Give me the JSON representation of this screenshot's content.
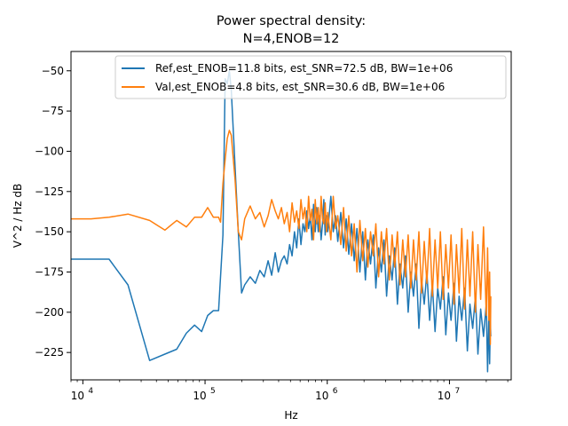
{
  "chart_data": {
    "type": "line",
    "title_line1": "Power spectral density:",
    "title_line2": "N=4,ENOB=12",
    "xlabel": "Hz",
    "ylabel": "V^2 / Hz dB",
    "xscale": "log",
    "xlim": [
      8000,
      32000000
    ],
    "ylim": [
      -242,
      -38
    ],
    "x_ticks": [
      {
        "value": 10000,
        "base": "10",
        "exp": "4"
      },
      {
        "value": 100000,
        "base": "10",
        "exp": "5"
      },
      {
        "value": 1000000,
        "base": "10",
        "exp": "6"
      },
      {
        "value": 10000000,
        "base": "10",
        "exp": "7"
      }
    ],
    "y_ticks": [
      {
        "value": -50,
        "label": "−50"
      },
      {
        "value": -75,
        "label": "−75"
      },
      {
        "value": -100,
        "label": "−100"
      },
      {
        "value": -125,
        "label": "−125"
      },
      {
        "value": -150,
        "label": "−150"
      },
      {
        "value": -175,
        "label": "−175"
      },
      {
        "value": -200,
        "label": "−200"
      },
      {
        "value": -225,
        "label": "−225"
      }
    ],
    "legend_position": "top-right",
    "series": [
      {
        "name": "Ref,est_ENOB=11.8 bits, est_SNR=72.5 dB, BW=1e+06",
        "color": "#1f77b4",
        "points": [
          [
            8000,
            -167
          ],
          [
            11700,
            -167
          ],
          [
            16400,
            -167
          ],
          [
            23400,
            -183
          ],
          [
            35200,
            -230
          ],
          [
            46900,
            -226
          ],
          [
            58600,
            -223
          ],
          [
            70300,
            -213
          ],
          [
            82000,
            -208
          ],
          [
            93700,
            -212
          ],
          [
            105000,
            -202
          ],
          [
            117000,
            -199
          ],
          [
            129000,
            -199
          ],
          [
            140000,
            -152
          ],
          [
            146000,
            -55
          ],
          [
            152000,
            -58
          ],
          [
            158000,
            -50
          ],
          [
            164000,
            -62
          ],
          [
            176000,
            -110
          ],
          [
            187000,
            -150
          ],
          [
            199000,
            -188
          ],
          [
            211000,
            -183
          ],
          [
            234000,
            -178
          ],
          [
            258000,
            -182
          ],
          [
            281000,
            -174
          ],
          [
            305000,
            -178
          ],
          [
            328000,
            -168
          ],
          [
            351000,
            -177
          ],
          [
            375000,
            -163
          ],
          [
            398000,
            -175
          ],
          [
            422000,
            -168
          ],
          [
            445000,
            -165
          ],
          [
            469000,
            -170
          ],
          [
            492000,
            -158
          ],
          [
            515000,
            -165
          ],
          [
            539000,
            -150
          ],
          [
            562000,
            -160
          ],
          [
            586000,
            -142
          ],
          [
            609000,
            -158
          ],
          [
            633000,
            -145
          ],
          [
            656000,
            -150
          ],
          [
            680000,
            -137
          ],
          [
            703000,
            -148
          ],
          [
            726000,
            -140
          ],
          [
            750000,
            -155
          ],
          [
            773000,
            -133
          ],
          [
            797000,
            -150
          ],
          [
            820000,
            -135
          ],
          [
            844000,
            -150
          ],
          [
            867000,
            -140
          ],
          [
            891000,
            -155
          ],
          [
            914000,
            -145
          ],
          [
            938000,
            -130
          ],
          [
            961000,
            -152
          ],
          [
            985000,
            -140
          ],
          [
            1010000,
            -150
          ],
          [
            1070000,
            -128
          ],
          [
            1120000,
            -150
          ],
          [
            1170000,
            -140
          ],
          [
            1220000,
            -156
          ],
          [
            1290000,
            -138
          ],
          [
            1360000,
            -160
          ],
          [
            1430000,
            -142
          ],
          [
            1500000,
            -164
          ],
          [
            1580000,
            -145
          ],
          [
            1660000,
            -168
          ],
          [
            1750000,
            -148
          ],
          [
            1850000,
            -175
          ],
          [
            1950000,
            -150
          ],
          [
            2050000,
            -180
          ],
          [
            2150000,
            -155
          ],
          [
            2260000,
            -170
          ],
          [
            2380000,
            -152
          ],
          [
            2500000,
            -185
          ],
          [
            2630000,
            -160
          ],
          [
            2770000,
            -175
          ],
          [
            2910000,
            -155
          ],
          [
            3060000,
            -190
          ],
          [
            3220000,
            -165
          ],
          [
            3390000,
            -180
          ],
          [
            3560000,
            -160
          ],
          [
            3750000,
            -195
          ],
          [
            3940000,
            -170
          ],
          [
            4150000,
            -185
          ],
          [
            4360000,
            -165
          ],
          [
            4590000,
            -200
          ],
          [
            4830000,
            -175
          ],
          [
            5080000,
            -190
          ],
          [
            5340000,
            -170
          ],
          [
            5620000,
            -210
          ],
          [
            5910000,
            -180
          ],
          [
            6220000,
            -195
          ],
          [
            6540000,
            -175
          ],
          [
            6880000,
            -205
          ],
          [
            7240000,
            -182
          ],
          [
            7620000,
            -212
          ],
          [
            8010000,
            -185
          ],
          [
            8430000,
            -198
          ],
          [
            8870000,
            -178
          ],
          [
            9330000,
            -214
          ],
          [
            9810000,
            -188
          ],
          [
            10300000,
            -205
          ],
          [
            10900000,
            -182
          ],
          [
            11400000,
            -218
          ],
          [
            12000000,
            -190
          ],
          [
            12600000,
            -205
          ],
          [
            13300000,
            -185
          ],
          [
            14000000,
            -224
          ],
          [
            14700000,
            -195
          ],
          [
            15500000,
            -210
          ],
          [
            16300000,
            -190
          ],
          [
            17100000,
            -226
          ],
          [
            18000000,
            -198
          ],
          [
            19000000,
            -215
          ],
          [
            20000000,
            -195
          ],
          [
            20500000,
            -237
          ],
          [
            21000000,
            -200
          ],
          [
            21300000,
            -232
          ],
          [
            21600000,
            -205
          ],
          [
            21800000,
            -215
          ]
        ]
      },
      {
        "name": "Val,est_ENOB=4.8 bits, est_SNR=30.6 dB, BW=1e+06",
        "color": "#ff7f0e",
        "points": [
          [
            8000,
            -142
          ],
          [
            11700,
            -142
          ],
          [
            16400,
            -141
          ],
          [
            23400,
            -139
          ],
          [
            35200,
            -143
          ],
          [
            46900,
            -149
          ],
          [
            58600,
            -143
          ],
          [
            70300,
            -147
          ],
          [
            82000,
            -141
          ],
          [
            93700,
            -141
          ],
          [
            105000,
            -135
          ],
          [
            117000,
            -141
          ],
          [
            129000,
            -141
          ],
          [
            134000,
            -144
          ],
          [
            140000,
            -120
          ],
          [
            146000,
            -105
          ],
          [
            152000,
            -92
          ],
          [
            158000,
            -87
          ],
          [
            164000,
            -90
          ],
          [
            176000,
            -118
          ],
          [
            187000,
            -150
          ],
          [
            199000,
            -155
          ],
          [
            211000,
            -142
          ],
          [
            234000,
            -134
          ],
          [
            258000,
            -142
          ],
          [
            281000,
            -138
          ],
          [
            305000,
            -147
          ],
          [
            328000,
            -140
          ],
          [
            351000,
            -130
          ],
          [
            375000,
            -137
          ],
          [
            398000,
            -142
          ],
          [
            422000,
            -135
          ],
          [
            445000,
            -145
          ],
          [
            469000,
            -138
          ],
          [
            492000,
            -150
          ],
          [
            515000,
            -132
          ],
          [
            539000,
            -144
          ],
          [
            562000,
            -137
          ],
          [
            586000,
            -148
          ],
          [
            609000,
            -130
          ],
          [
            633000,
            -142
          ],
          [
            656000,
            -135
          ],
          [
            680000,
            -150
          ],
          [
            703000,
            -128
          ],
          [
            726000,
            -143
          ],
          [
            750000,
            -136
          ],
          [
            773000,
            -155
          ],
          [
            797000,
            -130
          ],
          [
            820000,
            -145
          ],
          [
            844000,
            -135
          ],
          [
            867000,
            -150
          ],
          [
            891000,
            -128
          ],
          [
            914000,
            -142
          ],
          [
            938000,
            -145
          ],
          [
            961000,
            -132
          ],
          [
            985000,
            -150
          ],
          [
            1010000,
            -138
          ],
          [
            1070000,
            -155
          ],
          [
            1120000,
            -128
          ],
          [
            1170000,
            -148
          ],
          [
            1220000,
            -140
          ],
          [
            1290000,
            -158
          ],
          [
            1360000,
            -135
          ],
          [
            1430000,
            -162
          ],
          [
            1500000,
            -140
          ],
          [
            1580000,
            -165
          ],
          [
            1660000,
            -145
          ],
          [
            1750000,
            -175
          ],
          [
            1850000,
            -143
          ],
          [
            1950000,
            -168
          ],
          [
            2050000,
            -148
          ],
          [
            2150000,
            -172
          ],
          [
            2260000,
            -150
          ],
          [
            2380000,
            -165
          ],
          [
            2500000,
            -145
          ],
          [
            2630000,
            -178
          ],
          [
            2770000,
            -150
          ],
          [
            2910000,
            -170
          ],
          [
            3060000,
            -148
          ],
          [
            3220000,
            -180
          ],
          [
            3390000,
            -152
          ],
          [
            3560000,
            -172
          ],
          [
            3750000,
            -150
          ],
          [
            3940000,
            -183
          ],
          [
            4150000,
            -155
          ],
          [
            4360000,
            -178
          ],
          [
            4590000,
            -152
          ],
          [
            4830000,
            -185
          ],
          [
            5080000,
            -155
          ],
          [
            5340000,
            -180
          ],
          [
            5620000,
            -150
          ],
          [
            5910000,
            -188
          ],
          [
            6220000,
            -156
          ],
          [
            6540000,
            -182
          ],
          [
            6880000,
            -148
          ],
          [
            7240000,
            -190
          ],
          [
            7620000,
            -155
          ],
          [
            8010000,
            -185
          ],
          [
            8430000,
            -150
          ],
          [
            8870000,
            -192
          ],
          [
            9330000,
            -158
          ],
          [
            9810000,
            -185
          ],
          [
            10300000,
            -152
          ],
          [
            10900000,
            -195
          ],
          [
            11400000,
            -158
          ],
          [
            12000000,
            -188
          ],
          [
            12600000,
            -148
          ],
          [
            13300000,
            -198
          ],
          [
            14000000,
            -155
          ],
          [
            14700000,
            -190
          ],
          [
            15500000,
            -150
          ],
          [
            16300000,
            -200
          ],
          [
            17100000,
            -158
          ],
          [
            18000000,
            -192
          ],
          [
            19000000,
            -147
          ],
          [
            20000000,
            -202
          ],
          [
            20500000,
            -160
          ],
          [
            21000000,
            -205
          ],
          [
            21300000,
            -175
          ],
          [
            21600000,
            -220
          ],
          [
            21800000,
            -190
          ]
        ]
      }
    ]
  }
}
